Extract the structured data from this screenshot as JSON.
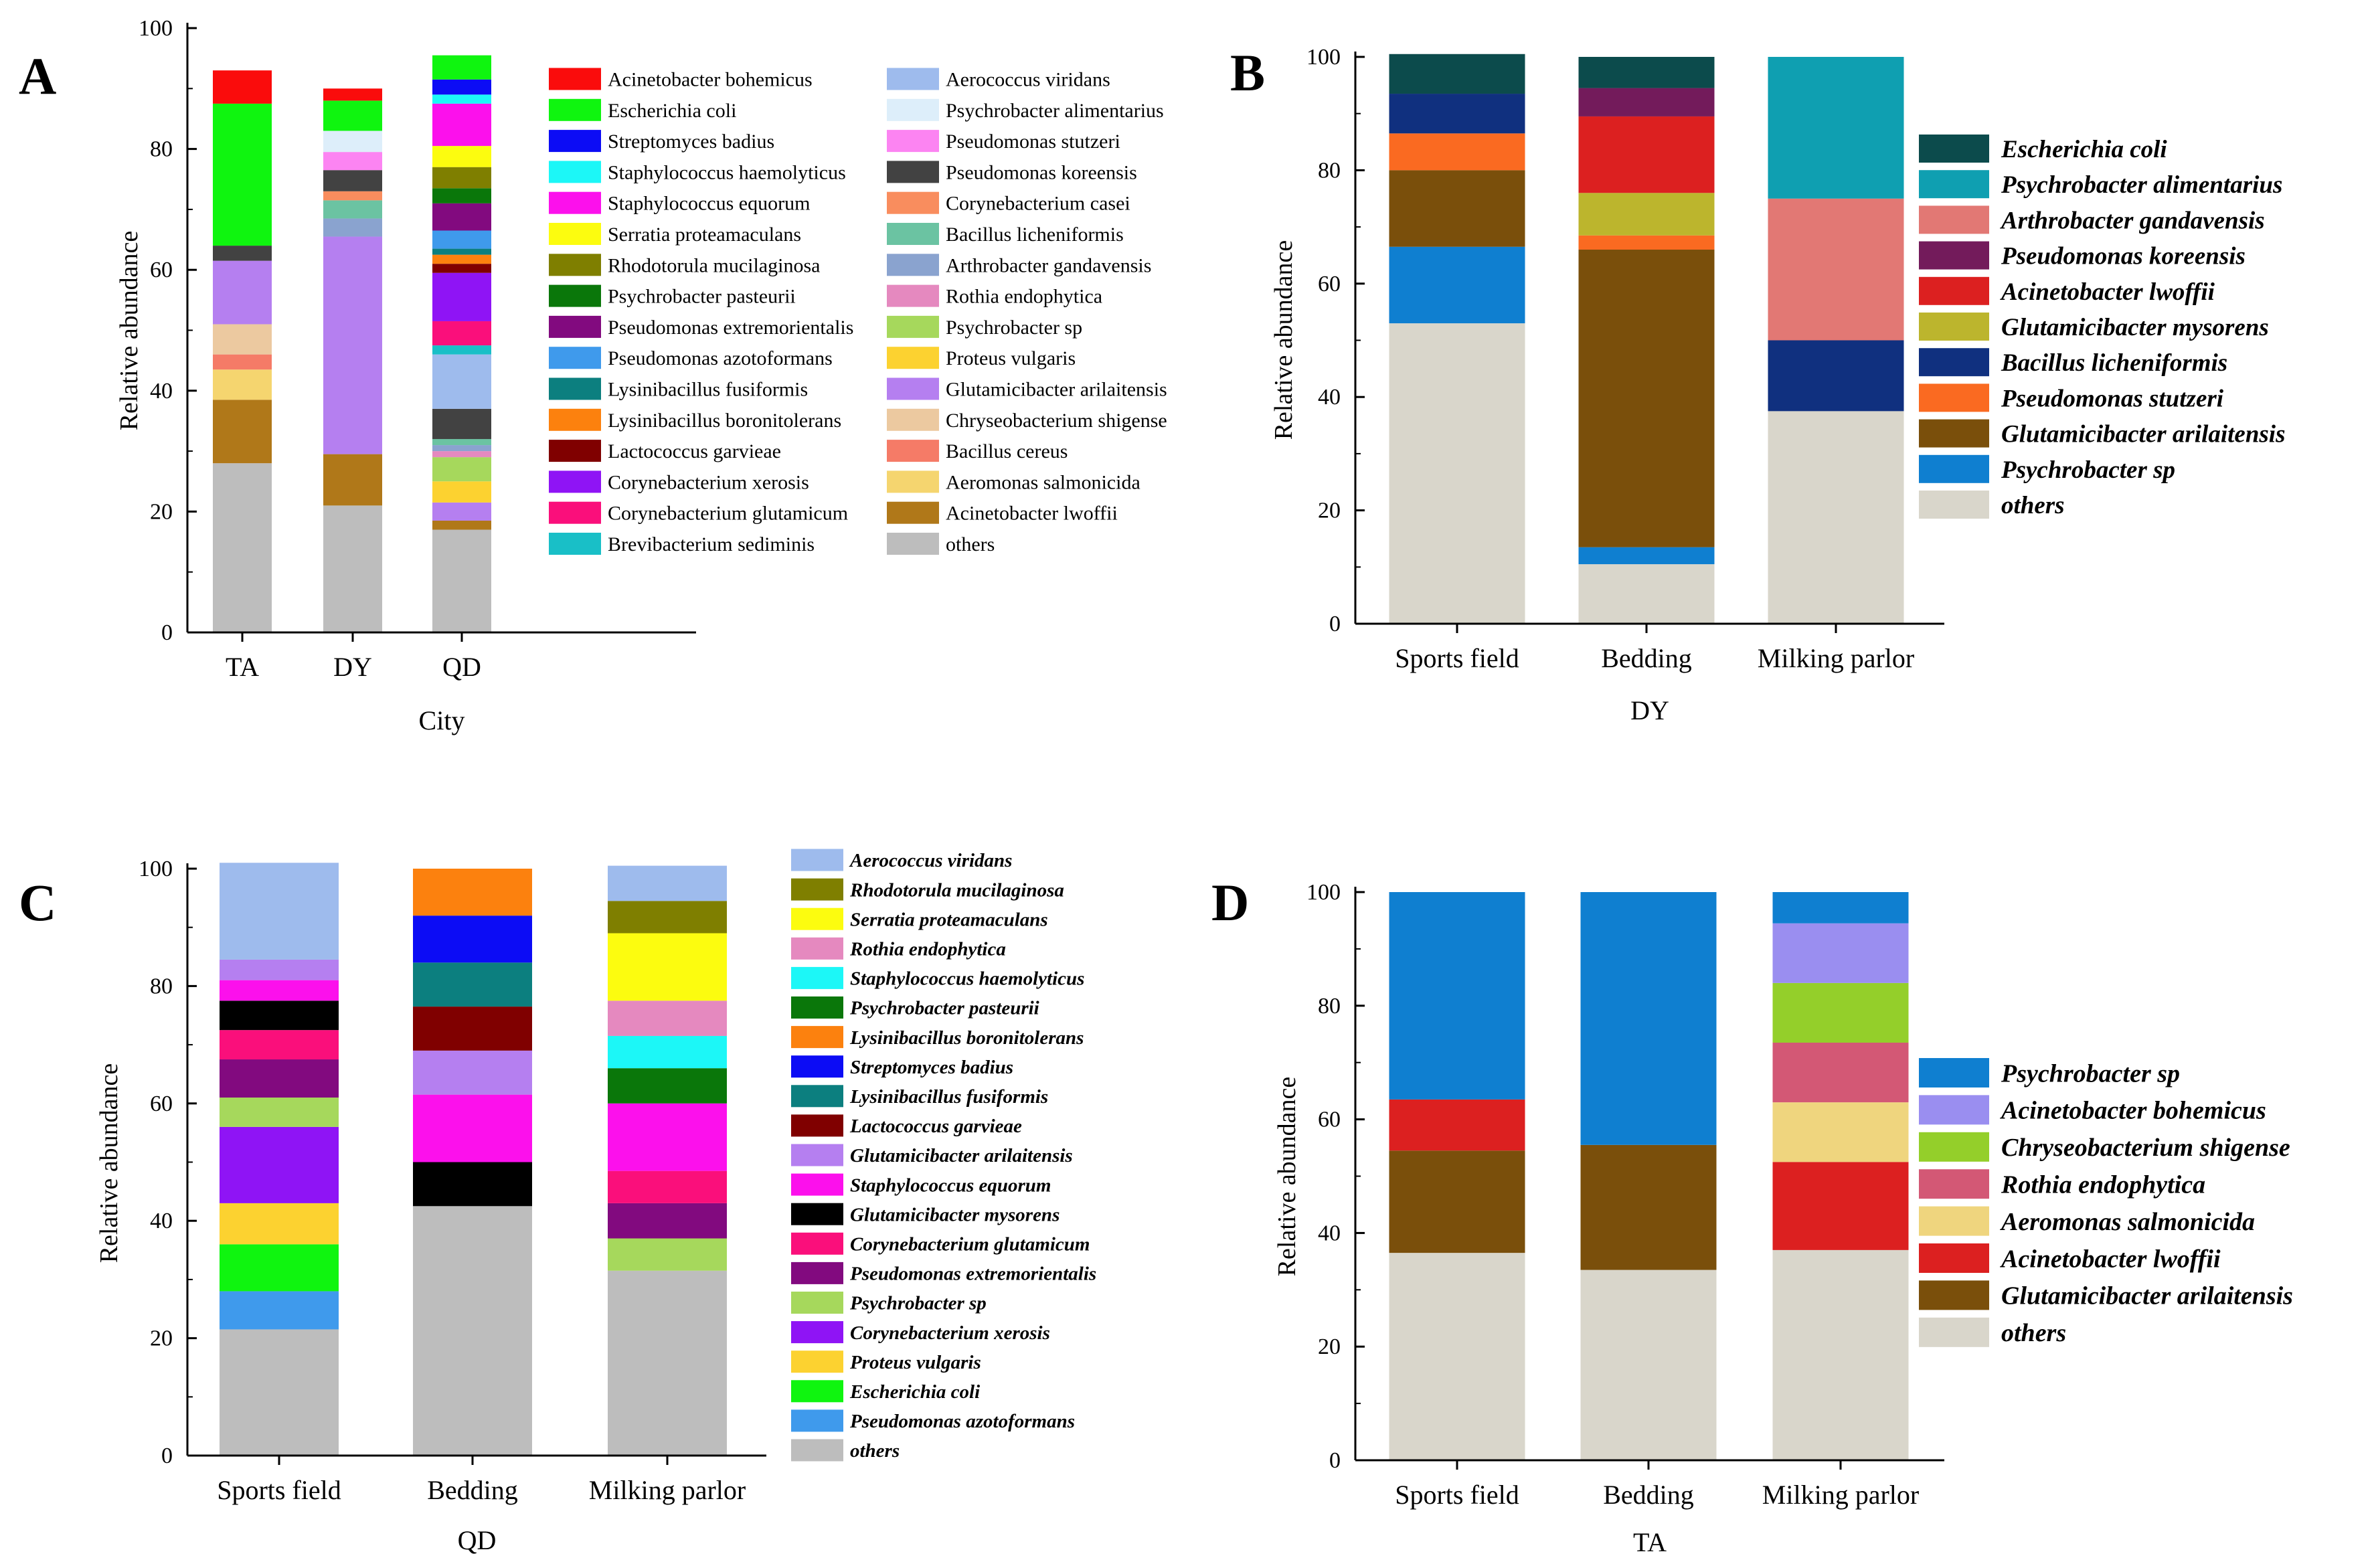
{
  "chart_data": [
    {
      "panel": "A",
      "type": "bar",
      "stacked": true,
      "ylabel": "Relative abundance",
      "xlabel": "City",
      "ylim": [
        0,
        100
      ],
      "yticks": [
        0,
        20,
        40,
        60,
        80,
        100
      ],
      "categories": [
        "TA",
        "DY",
        "QD"
      ],
      "legend_italic": false,
      "series": [
        {
          "name": "others",
          "color": "#bdbdbd",
          "values": [
            28,
            21,
            17
          ]
        },
        {
          "name": "Acinetobacter lwoffii",
          "color": "#b07819",
          "values": [
            10.5,
            8.5,
            1.5
          ]
        },
        {
          "name": "Aeromonas salmonicida",
          "color": "#f5d56f",
          "values": [
            5,
            0,
            0
          ]
        },
        {
          "name": "Bacillus cereus",
          "color": "#f57b67",
          "values": [
            2.5,
            0,
            0
          ]
        },
        {
          "name": "Chryseobacterium shigense",
          "color": "#ecc9a0",
          "values": [
            5,
            0,
            0
          ]
        },
        {
          "name": "Glutamicibacter arilaitensis",
          "color": "#b57ff0",
          "values": [
            10.5,
            36,
            3
          ]
        },
        {
          "name": "Proteus vulgaris",
          "color": "#fcd230",
          "values": [
            0,
            0,
            3.5
          ]
        },
        {
          "name": "Psychrobacter sp",
          "color": "#a6d85c",
          "values": [
            0,
            0,
            4
          ]
        },
        {
          "name": "Rothia endophytica",
          "color": "#e589bf",
          "values": [
            0,
            0,
            1
          ]
        },
        {
          "name": "Arthrobacter gandavensis",
          "color": "#8aa3cf",
          "values": [
            0,
            3,
            1
          ]
        },
        {
          "name": "Bacillus licheniformis",
          "color": "#6bc3a2",
          "values": [
            0,
            3,
            1
          ]
        },
        {
          "name": "Corynebacterium casei",
          "color": "#f98d5e",
          "values": [
            0,
            1.5,
            0
          ]
        },
        {
          "name": "Pseudomonas koreensis",
          "color": "#424242",
          "values": [
            2.5,
            3.5,
            5
          ]
        },
        {
          "name": "Pseudomonas stutzeri",
          "color": "#fc84f2",
          "values": [
            0,
            3,
            0
          ]
        },
        {
          "name": "Psychrobacter alimentarius",
          "color": "#ddeefa",
          "values": [
            0,
            3.5,
            0
          ]
        },
        {
          "name": "Aerococcus viridans",
          "color": "#9ebbed",
          "values": [
            0,
            0,
            9
          ]
        },
        {
          "name": "Brevibacterium sediminis",
          "color": "#19bfc7",
          "values": [
            0,
            0,
            1.5
          ]
        },
        {
          "name": "Corynebacterium glutamicum",
          "color": "#fa0f7b",
          "values": [
            0,
            0,
            4
          ]
        },
        {
          "name": "Corynebacterium xerosis",
          "color": "#8f14f5",
          "values": [
            0,
            0,
            8
          ]
        },
        {
          "name": "Lactococcus garvieae",
          "color": "#800000",
          "values": [
            0,
            0,
            1.5
          ]
        },
        {
          "name": "Lysinibacillus boronitolerans",
          "color": "#fc810e",
          "values": [
            0,
            0,
            1.5
          ]
        },
        {
          "name": "Lysinibacillus fusiformis",
          "color": "#0c7f7f",
          "values": [
            0,
            0,
            1
          ]
        },
        {
          "name": "Pseudomonas azotoformans",
          "color": "#3f9aec",
          "values": [
            0,
            0,
            3
          ]
        },
        {
          "name": "Pseudomonas extremorientalis",
          "color": "#820a7f",
          "values": [
            0,
            0,
            4.5
          ]
        },
        {
          "name": "Psychrobacter pasteurii",
          "color": "#0a770a",
          "values": [
            0,
            0,
            2.5
          ]
        },
        {
          "name": "Rhodotorula mucilaginosa",
          "color": "#7f7f00",
          "values": [
            0,
            0,
            3.5
          ]
        },
        {
          "name": "Serratia proteamaculans",
          "color": "#fcfc0f",
          "values": [
            0,
            0,
            3.5
          ]
        },
        {
          "name": "Staphylococcus equorum",
          "color": "#fc10ec",
          "values": [
            0,
            0,
            7
          ]
        },
        {
          "name": "Staphylococcus haemolyticus",
          "color": "#1cf7f7",
          "values": [
            0,
            0,
            1.5
          ]
        },
        {
          "name": "Streptomyces badius",
          "color": "#0c0cf5",
          "values": [
            0,
            0,
            2.5
          ]
        },
        {
          "name": "Escherichia coli",
          "color": "#0ff50f",
          "values": [
            23.5,
            5,
            4
          ]
        },
        {
          "name": "Acinetobacter bohemicus",
          "color": "#fa0c0c",
          "values": [
            5.5,
            2,
            0
          ]
        }
      ],
      "legend_columns": [
        [
          "Acinetobacter bohemicus",
          "Escherichia coli",
          "Streptomyces badius",
          "Staphylococcus haemolyticus",
          "Staphylococcus equorum",
          "Serratia proteamaculans",
          "Rhodotorula mucilaginosa",
          "Psychrobacter pasteurii",
          "Pseudomonas extremorientalis",
          "Pseudomonas azotoformans",
          "Lysinibacillus fusiformis",
          "Lysinibacillus boronitolerans",
          "Lactococcus garvieae",
          "Corynebacterium xerosis",
          "Corynebacterium glutamicum",
          "Brevibacterium sediminis"
        ],
        [
          "Aerococcus viridans",
          "Psychrobacter alimentarius",
          "Pseudomonas stutzeri",
          "Pseudomonas koreensis",
          "Corynebacterium casei",
          "Bacillus licheniformis",
          "Arthrobacter gandavensis",
          "Rothia endophytica",
          "Psychrobacter sp",
          "Proteus vulgaris",
          "Glutamicibacter arilaitensis",
          "Chryseobacterium shigense",
          "Bacillus cereus",
          "Aeromonas salmonicida",
          "Acinetobacter lwoffii",
          "others"
        ]
      ]
    },
    {
      "panel": "B",
      "type": "bar",
      "stacked": true,
      "ylabel": "Relative abundance",
      "xlabel": "DY",
      "ylim": [
        0,
        100
      ],
      "yticks": [
        0,
        20,
        40,
        60,
        80,
        100
      ],
      "categories": [
        "Sports field",
        "Bedding",
        "Milking parlor"
      ],
      "legend_italic": true,
      "series": [
        {
          "name": "others",
          "color": "#d9d6cb",
          "values": [
            53,
            10.5,
            37.5
          ]
        },
        {
          "name": "Psychrobacter sp",
          "color": "#0f7fd0",
          "values": [
            13.5,
            3,
            0
          ]
        },
        {
          "name": "Glutamicibacter arilaitensis",
          "color": "#7a4f0b",
          "values": [
            13.5,
            52.5,
            0
          ]
        },
        {
          "name": "Pseudomonas stutzeri",
          "color": "#fa6a21",
          "values": [
            6.5,
            2.5,
            0
          ]
        },
        {
          "name": "Bacillus licheniformis",
          "color": "#10307f",
          "values": [
            7,
            0,
            12.5
          ]
        },
        {
          "name": "Glutamicibacter mysorens",
          "color": "#bcb52d",
          "values": [
            0,
            7.5,
            0
          ]
        },
        {
          "name": "Acinetobacter lwoffii",
          "color": "#dc2020",
          "values": [
            0,
            13.5,
            0
          ]
        },
        {
          "name": "Pseudomonas koreensis",
          "color": "#731b5b",
          "values": [
            0,
            5,
            0
          ]
        },
        {
          "name": "Arthrobacter gandavensis",
          "color": "#e27874",
          "values": [
            0,
            0,
            25
          ]
        },
        {
          "name": "Psychrobacter alimentarius",
          "color": "#0f9fb1",
          "values": [
            0,
            0,
            25
          ]
        },
        {
          "name": "Escherichia coli",
          "color": "#0c4b4c",
          "values": [
            7,
            5.5,
            0
          ]
        }
      ],
      "legend_order": [
        "Escherichia coli",
        "Psychrobacter alimentarius",
        "Arthrobacter gandavensis",
        "Pseudomonas koreensis",
        "Acinetobacter lwoffii",
        "Glutamicibacter mysorens",
        "Bacillus licheniformis",
        "Pseudomonas stutzeri",
        "Glutamicibacter arilaitensis",
        "Psychrobacter sp",
        "others"
      ]
    },
    {
      "panel": "C",
      "type": "bar",
      "stacked": true,
      "ylabel": "Relative abundance",
      "xlabel": "QD",
      "ylim": [
        0,
        100
      ],
      "yticks": [
        0,
        20,
        40,
        60,
        80,
        100
      ],
      "categories": [
        "Sports field",
        "Bedding",
        "Milking parlor"
      ],
      "legend_italic": true,
      "series": [
        {
          "name": "others",
          "color": "#bdbdbd",
          "values": [
            21.5,
            42.5,
            31.5
          ]
        },
        {
          "name": "Pseudomonas azotoformans",
          "color": "#3f9aec",
          "values": [
            6.5,
            0,
            0
          ]
        },
        {
          "name": "Escherichia coli",
          "color": "#0ff50f",
          "values": [
            8,
            0,
            0
          ]
        },
        {
          "name": "Proteus vulgaris",
          "color": "#fcd230",
          "values": [
            7,
            0,
            0
          ]
        },
        {
          "name": "Corynebacterium xerosis",
          "color": "#8f14f5",
          "values": [
            13,
            0,
            0
          ]
        },
        {
          "name": "Psychrobacter sp",
          "color": "#a6d85c",
          "values": [
            5,
            0,
            5.5
          ]
        },
        {
          "name": "Pseudomonas extremorientalis",
          "color": "#820a7f",
          "values": [
            6.5,
            0,
            6
          ]
        },
        {
          "name": "Corynebacterium glutamicum",
          "color": "#fa0f7b",
          "values": [
            5,
            0,
            5.5
          ]
        },
        {
          "name": "Glutamicibacter mysorens",
          "color": "#000000",
          "values": [
            5,
            7.5,
            0
          ]
        },
        {
          "name": "Staphylococcus equorum",
          "color": "#fc10ec",
          "values": [
            3.5,
            11.5,
            11.5
          ]
        },
        {
          "name": "Glutamicibacter arilaitensis",
          "color": "#b57ff0",
          "values": [
            3.5,
            7.5,
            0
          ]
        },
        {
          "name": "Lactococcus garvieae",
          "color": "#800000",
          "values": [
            0,
            7.5,
            0
          ]
        },
        {
          "name": "Lysinibacillus fusiformis",
          "color": "#0c7f7f",
          "values": [
            0,
            7.5,
            0
          ]
        },
        {
          "name": "Streptomyces badius",
          "color": "#0c0cf5",
          "values": [
            0,
            8,
            0
          ]
        },
        {
          "name": "Lysinibacillus boronitolerans",
          "color": "#fc810e",
          "values": [
            0,
            8,
            0
          ]
        },
        {
          "name": "Psychrobacter pasteurii",
          "color": "#0a770a",
          "values": [
            0,
            0,
            6
          ]
        },
        {
          "name": "Staphylococcus haemolyticus",
          "color": "#1cf7f7",
          "values": [
            0,
            0,
            5.5
          ]
        },
        {
          "name": "Rothia endophytica",
          "color": "#e589bf",
          "values": [
            0,
            0,
            6
          ]
        },
        {
          "name": "Serratia proteamaculans",
          "color": "#fcfc0f",
          "values": [
            0,
            0,
            11.5
          ]
        },
        {
          "name": "Rhodotorula mucilaginosa",
          "color": "#7f7f00",
          "values": [
            0,
            0,
            5.5
          ]
        },
        {
          "name": "Aerococcus viridans",
          "color": "#9ebbed",
          "values": [
            16.5,
            0,
            6
          ]
        }
      ],
      "legend_order": [
        "Aerococcus viridans",
        "Rhodotorula mucilaginosa",
        "Serratia proteamaculans",
        "Rothia endophytica",
        "Staphylococcus haemolyticus",
        "Psychrobacter pasteurii",
        "Lysinibacillus boronitolerans",
        "Streptomyces badius",
        "Lysinibacillus fusiformis",
        "Lactococcus garvieae",
        "Glutamicibacter arilaitensis",
        "Staphylococcus equorum",
        "Glutamicibacter mysorens",
        "Corynebacterium glutamicum",
        "Pseudomonas extremorientalis",
        "Psychrobacter sp",
        "Corynebacterium xerosis",
        "Proteus vulgaris",
        "Escherichia coli",
        "Pseudomonas azotoformans",
        "others"
      ]
    },
    {
      "panel": "D",
      "type": "bar",
      "stacked": true,
      "ylabel": "Relative abundance",
      "xlabel": "TA",
      "ylim": [
        0,
        100
      ],
      "yticks": [
        0,
        20,
        40,
        60,
        80,
        100
      ],
      "categories": [
        "Sports field",
        "Bedding",
        "Milking parlor"
      ],
      "legend_italic": true,
      "series": [
        {
          "name": "others",
          "color": "#d9d6cb",
          "values": [
            36.5,
            33.5,
            37
          ]
        },
        {
          "name": "Glutamicibacter arilaitensis",
          "color": "#7a4f0b",
          "values": [
            18,
            22,
            0
          ]
        },
        {
          "name": "Acinetobacter lwoffii",
          "color": "#dc2020",
          "values": [
            9,
            0,
            15.5
          ]
        },
        {
          "name": "Aeromonas salmonicida",
          "color": "#efd57e",
          "values": [
            0,
            0,
            10.5
          ]
        },
        {
          "name": "Rothia endophytica",
          "color": "#d35875",
          "values": [
            0,
            0,
            10.5
          ]
        },
        {
          "name": "Chryseobacterium shigense",
          "color": "#94cf2a",
          "values": [
            0,
            0,
            10.5
          ]
        },
        {
          "name": "Acinetobacter bohemicus",
          "color": "#9a8ef0",
          "values": [
            0,
            0,
            10.5
          ]
        },
        {
          "name": "Psychrobacter sp",
          "color": "#0f7fd0",
          "values": [
            36.5,
            44.5,
            5.5
          ]
        }
      ],
      "legend_order": [
        "Psychrobacter sp",
        "Acinetobacter bohemicus",
        "Chryseobacterium shigense",
        "Rothia endophytica",
        "Aeromonas salmonicida",
        "Acinetobacter lwoffii",
        "Glutamicibacter arilaitensis",
        "others"
      ]
    }
  ]
}
